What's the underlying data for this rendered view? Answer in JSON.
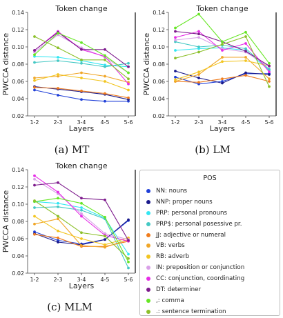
{
  "figure": {
    "panels": [
      {
        "caption": "(a) MT"
      },
      {
        "caption": "(b) LM"
      },
      {
        "caption": "(c) MLM"
      }
    ],
    "legend_title": "POS"
  },
  "chart_data": [
    {
      "type": "line",
      "title": "Token change",
      "caption": "(a) MT",
      "xlabel": "Layers",
      "ylabel": "PWCCA distance",
      "categories": [
        "1-2",
        "2-3",
        "3-4",
        "4-5",
        "5-6"
      ],
      "yticks": [
        "0.02",
        "0.04",
        "0.06",
        "0.08",
        "0.10",
        "0.12",
        "0.14"
      ],
      "ylim": [
        0.02,
        0.14
      ],
      "series": [
        {
          "name": "NN: nouns",
          "color": "#1f3fd8",
          "values": [
            0.05,
            0.044,
            0.039,
            0.037,
            0.037
          ]
        },
        {
          "name": "NNP: proper nouns",
          "color": "#1a1a8c",
          "values": [
            0.054,
            0.051,
            0.048,
            0.045,
            0.039
          ]
        },
        {
          "name": "PRP: personal pronouns",
          "color": "#33e6f2",
          "values": [
            0.089,
            0.088,
            0.084,
            0.079,
            0.077
          ]
        },
        {
          "name": "PRP$: personal posessive pr.",
          "color": "#44c8c4",
          "values": [
            0.082,
            0.084,
            0.081,
            0.077,
            0.081
          ]
        },
        {
          "name": "JJ: adjective or numeral",
          "color": "#f07c1c",
          "values": [
            0.053,
            0.052,
            0.049,
            0.046,
            0.041
          ]
        },
        {
          "name": "VB: verbs",
          "color": "#f0a628",
          "values": [
            0.064,
            0.066,
            0.07,
            0.066,
            0.059
          ]
        },
        {
          "name": "RB: adverb",
          "color": "#f2c521",
          "values": [
            0.061,
            0.068,
            0.064,
            0.06,
            0.05
          ]
        },
        {
          "name": "IN: preposition or conjunction",
          "color": "#d9a0e8",
          "values": [
            0.094,
            0.114,
            0.099,
            0.088,
            0.07
          ]
        },
        {
          "name": "CC: conjunction, coordinating",
          "color": "#e62ce6",
          "values": [
            0.096,
            0.118,
            0.097,
            0.089,
            0.057
          ]
        },
        {
          "name": "DT: determiner",
          "color": "#7d1a8c",
          "values": [
            0.096,
            0.117,
            0.097,
            0.097,
            0.077
          ]
        },
        {
          "name": ",: comma",
          "color": "#66e624",
          "values": [
            0.091,
            0.116,
            0.105,
            0.09,
            0.07
          ]
        },
        {
          "name": ".: sentence termination",
          "color": "#8cc02a",
          "values": [
            0.112,
            0.099,
            0.085,
            0.085,
            0.063
          ]
        }
      ]
    },
    {
      "type": "line",
      "title": "Token change",
      "caption": "(b) LM",
      "xlabel": "Layers",
      "ylabel": "PWCCA distance",
      "categories": [
        "1-2",
        "2-3",
        "3-4",
        "4-5",
        "5-6"
      ],
      "yticks": [
        "0.02",
        "0.04",
        "0.06",
        "0.08",
        "0.10",
        "0.12",
        "0.14"
      ],
      "ylim": [
        0.02,
        0.14
      ],
      "series": [
        {
          "name": "NN: nouns",
          "color": "#1f3fd8",
          "values": [
            0.065,
            0.057,
            0.06,
            0.069,
            0.069
          ]
        },
        {
          "name": "NNP: proper nouns",
          "color": "#1a1a8c",
          "values": [
            0.072,
            0.064,
            0.058,
            0.07,
            0.068
          ]
        },
        {
          "name": "PRP: personal pronouns",
          "color": "#33e6f2",
          "values": [
            0.096,
            0.098,
            0.099,
            0.096,
            0.073
          ]
        },
        {
          "name": "PRP$: personal posessive pr.",
          "color": "#44c8c4",
          "values": [
            0.106,
            0.1,
            0.102,
            0.098,
            0.074
          ]
        },
        {
          "name": "JJ: adjective or numeral",
          "color": "#f07c1c",
          "values": [
            0.06,
            0.059,
            0.063,
            0.067,
            0.06
          ]
        },
        {
          "name": "VB: verbs",
          "color": "#f0a628",
          "values": [
            0.06,
            0.068,
            0.088,
            0.088,
            0.063
          ]
        },
        {
          "name": "RB: adverb",
          "color": "#f2c521",
          "values": [
            0.062,
            0.071,
            0.083,
            0.084,
            0.078
          ]
        },
        {
          "name": "IN: preposition or conjunction",
          "color": "#d9a0e8",
          "values": [
            0.108,
            0.111,
            0.098,
            0.094,
            0.077
          ]
        },
        {
          "name": "CC: conjunction, coordinating",
          "color": "#e62ce6",
          "values": [
            0.111,
            0.118,
            0.096,
            0.104,
            0.071
          ]
        },
        {
          "name": "DT: determiner",
          "color": "#7d1a8c",
          "values": [
            0.118,
            0.115,
            0.106,
            0.095,
            0.078
          ]
        },
        {
          "name": ",: comma",
          "color": "#66e624",
          "values": [
            0.122,
            0.138,
            0.106,
            0.117,
            0.081
          ]
        },
        {
          "name": ".: sentence termination",
          "color": "#8cc02a",
          "values": [
            0.087,
            0.094,
            0.103,
            0.112,
            0.054
          ]
        }
      ]
    },
    {
      "type": "line",
      "title": "Token change",
      "caption": "(c) MLM",
      "xlabel": "Layers",
      "ylabel": "PWCCA distance",
      "categories": [
        "1-2",
        "2-3",
        "3-4",
        "4-5",
        "5-6"
      ],
      "yticks": [
        "0.02",
        "0.04",
        "0.06",
        "0.08",
        "0.10",
        "0.12",
        "0.14"
      ],
      "ylim": [
        0.02,
        0.14
      ],
      "series": [
        {
          "name": "NN: nouns",
          "color": "#1f3fd8",
          "values": [
            0.068,
            0.058,
            0.054,
            0.059,
            0.081
          ]
        },
        {
          "name": "NNP: proper nouns",
          "color": "#1a1a8c",
          "values": [
            0.066,
            0.056,
            0.053,
            0.059,
            0.082
          ]
        },
        {
          "name": "PRP: personal pronouns",
          "color": "#33e6f2",
          "values": [
            0.103,
            0.101,
            0.096,
            0.084,
            0.042
          ]
        },
        {
          "name": "PRP$: personal posessive pr.",
          "color": "#44c8c4",
          "values": [
            0.096,
            0.097,
            0.093,
            0.083,
            0.026
          ]
        },
        {
          "name": "JJ: adjective or numeral",
          "color": "#f07c1c",
          "values": [
            0.065,
            0.061,
            0.051,
            0.051,
            0.057
          ]
        },
        {
          "name": "VB: verbs",
          "color": "#f0a628",
          "values": [
            0.077,
            0.083,
            0.052,
            0.05,
            0.059
          ]
        },
        {
          "name": "RB: adverb",
          "color": "#f2c521",
          "values": [
            0.086,
            0.069,
            0.06,
            0.053,
            0.061
          ]
        },
        {
          "name": "IN: preposition or conjunction",
          "color": "#d9a0e8",
          "values": [
            0.129,
            0.112,
            0.089,
            0.066,
            0.059
          ]
        },
        {
          "name": "CC: conjunction, coordinating",
          "color": "#e62ce6",
          "values": [
            0.133,
            0.114,
            0.086,
            0.064,
            0.057
          ]
        },
        {
          "name": "DT: determiner",
          "color": "#7d1a8c",
          "values": [
            0.122,
            0.125,
            0.107,
            0.105,
            0.058
          ]
        },
        {
          "name": ",: comma",
          "color": "#66e624",
          "values": [
            0.103,
            0.107,
            0.101,
            0.085,
            0.033
          ]
        },
        {
          "name": ".: sentence termination",
          "color": "#8cc02a",
          "values": [
            0.104,
            0.086,
            0.067,
            0.063,
            0.037
          ]
        }
      ]
    }
  ]
}
